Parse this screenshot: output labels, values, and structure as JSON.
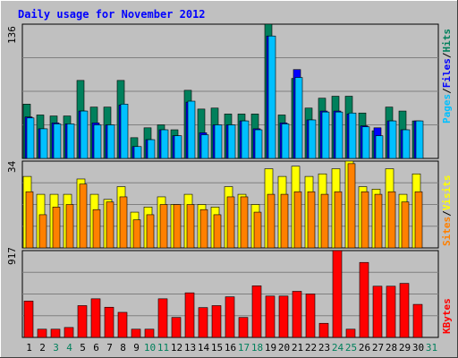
{
  "title": "Daily usage for November 2012",
  "colors": {
    "background": "#c0c0c0",
    "grid": "#808080",
    "title": "#0000ff",
    "hits": "#00805c",
    "files": "#0000ff",
    "pages": "#00c0ff",
    "visits": "#ffff00",
    "sites": "#ff8000",
    "kbytes": "#ff0000",
    "day_weekday": "#000000",
    "day_weekend": "#00805c"
  },
  "axis_labels": {
    "panel1_max": "136",
    "panel2_max": "34",
    "panel3_max": "917"
  },
  "legend": {
    "pages": "Pages",
    "files": "Files",
    "hits": "Hits",
    "visits": "Visits",
    "sites": "Sites",
    "kbytes": "KBytes",
    "sep": "/"
  },
  "days": [
    "1",
    "2",
    "3",
    "4",
    "5",
    "6",
    "7",
    "8",
    "9",
    "10",
    "11",
    "12",
    "13",
    "14",
    "15",
    "16",
    "17",
    "18",
    "19",
    "20",
    "21",
    "22",
    "23",
    "24",
    "25",
    "26",
    "27",
    "28",
    "29",
    "30",
    "31"
  ],
  "weekend_days": [
    3,
    4,
    10,
    11,
    17,
    18,
    24,
    25,
    31
  ],
  "chart_data": {
    "type": "bar",
    "title": "Daily usage for November 2012",
    "categories": [
      "1",
      "2",
      "3",
      "4",
      "5",
      "6",
      "7",
      "8",
      "9",
      "10",
      "11",
      "12",
      "13",
      "14",
      "15",
      "16",
      "17",
      "18",
      "19",
      "20",
      "21",
      "22",
      "23",
      "24",
      "25",
      "26",
      "27",
      "28",
      "29",
      "30",
      "31"
    ],
    "panels": [
      {
        "ylim": [
          0,
          136
        ],
        "series": [
          {
            "name": "Hits",
            "values": [
              55,
              44,
              43,
              43,
              79,
              52,
              52,
              79,
              21,
              31,
              34,
              29,
              69,
              50,
              51,
              45,
              45,
              45,
              136,
              44,
              81,
              51,
              61,
              63,
              63,
              46,
              28,
              52,
              48,
              38,
              0
            ]
          },
          {
            "name": "Files",
            "values": [
              42,
              30,
              36,
              35,
              48,
              36,
              34,
              54,
              12,
              19,
              29,
              23,
              57,
              26,
              34,
              34,
              38,
              30,
              124,
              36,
              90,
              39,
              48,
              48,
              45,
              33,
              31,
              38,
              29,
              38,
              0
            ]
          },
          {
            "name": "Pages",
            "values": [
              41,
              30,
              35,
              35,
              48,
              34,
              34,
              55,
              12,
              19,
              29,
              23,
              58,
              24,
              34,
              34,
              38,
              29,
              124,
              35,
              82,
              39,
              47,
              47,
              46,
              32,
              23,
              38,
              29,
              38,
              0
            ]
          }
        ]
      },
      {
        "ylim": [
          0,
          34
        ],
        "series": [
          {
            "name": "Visits",
            "values": [
              28,
              21,
              21,
              21,
              27,
              21,
              19,
              24,
              14,
              16,
              20,
              17,
              21,
              17,
              16,
              24,
              21,
              17,
              31,
              28,
              32,
              28,
              29,
              31,
              34,
              24,
              23,
              31,
              21,
              29,
              0
            ]
          },
          {
            "name": "Sites",
            "values": [
              22,
              13,
              16,
              17,
              25,
              15,
              18,
              20,
              11,
              13,
              17,
              17,
              17,
              15,
              13,
              20,
              20,
              14,
              21,
              21,
              22,
              22,
              21,
              22,
              33,
              22,
              21,
              22,
              18,
              22,
              0
            ]
          }
        ]
      },
      {
        "ylim": [
          0,
          917
        ],
        "series": [
          {
            "name": "KBytes",
            "values": [
              384,
              87,
              87,
              105,
              336,
              408,
              319,
              265,
              87,
              87,
              408,
              211,
              471,
              315,
              336,
              429,
              211,
              545,
              437,
              437,
              487,
              459,
              149,
              917,
              87,
              792,
              541,
              541,
              571,
              349,
              0
            ]
          }
        ]
      }
    ]
  }
}
